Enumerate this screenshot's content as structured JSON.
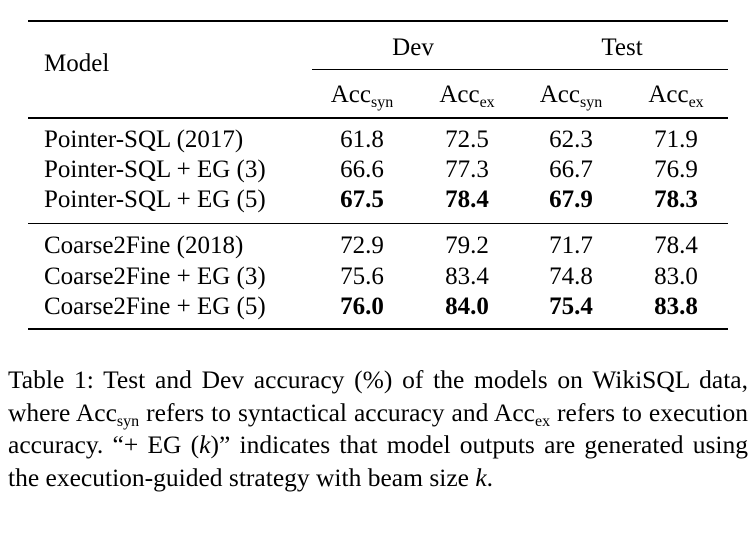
{
  "table": {
    "header": {
      "model": "Model",
      "dev": "Dev",
      "test": "Test",
      "acc": "Acc",
      "syn": "syn",
      "ex": "ex"
    },
    "groups": [
      {
        "rows": [
          {
            "model": "Pointer-SQL (2017)",
            "values": [
              "61.8",
              "72.5",
              "62.3",
              "71.9"
            ],
            "bold": false
          },
          {
            "model": "Pointer-SQL + EG (3)",
            "values": [
              "66.6",
              "77.3",
              "66.7",
              "76.9"
            ],
            "bold": false
          },
          {
            "model": "Pointer-SQL + EG (5)",
            "values": [
              "67.5",
              "78.4",
              "67.9",
              "78.3"
            ],
            "bold": true
          }
        ]
      },
      {
        "rows": [
          {
            "model": "Coarse2Fine (2018)",
            "values": [
              "72.9",
              "79.2",
              "71.7",
              "78.4"
            ],
            "bold": false
          },
          {
            "model": "Coarse2Fine + EG (3)",
            "values": [
              "75.6",
              "83.4",
              "74.8",
              "83.0"
            ],
            "bold": false
          },
          {
            "model": "Coarse2Fine + EG (5)",
            "values": [
              "76.0",
              "84.0",
              "75.4",
              "83.8"
            ],
            "bold": true
          }
        ]
      }
    ]
  },
  "caption": {
    "p1": "Table 1: Test and Dev accuracy (%) of the models on WikiSQL data, where Acc",
    "p1_sub": "syn",
    "p2": " refers to syntactical accuracy and Acc",
    "p2_sub": "ex",
    "p3": " refers to execution accuracy. “+ EG (",
    "p3_k": "k",
    "p4": ")” indicates that model outputs are generated using the execution-guided strategy with beam size ",
    "p4_k": "k",
    "p5": "."
  }
}
